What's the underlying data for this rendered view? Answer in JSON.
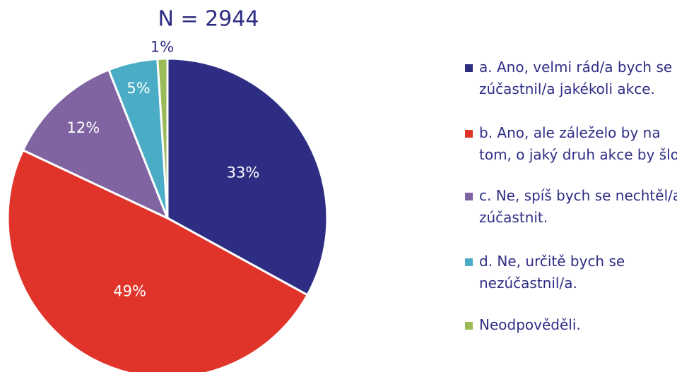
{
  "chart_data": {
    "type": "pie",
    "title": "N = 2944",
    "categories": [
      "a. Ano, velmi rád/a bych se zúčastnil/a jakékoli akce.",
      "b. Ano, ale záleželo by na tom, o jaký druh akce by šlo.",
      "c. Ne, spíš bych se nechtěl/a zúčastnit.",
      "d. Ne, určitě bych se nezúčastnil/a.",
      "Neodpověděli."
    ],
    "values": [
      33,
      49,
      12,
      5,
      1
    ],
    "value_labels": [
      "33%",
      "49%",
      "12%",
      "5%",
      "1%"
    ],
    "colors": [
      "#2e2d84",
      "#e0342b",
      "#8064a2",
      "#4bacc6",
      "#9bbb59"
    ],
    "legend": "right"
  }
}
